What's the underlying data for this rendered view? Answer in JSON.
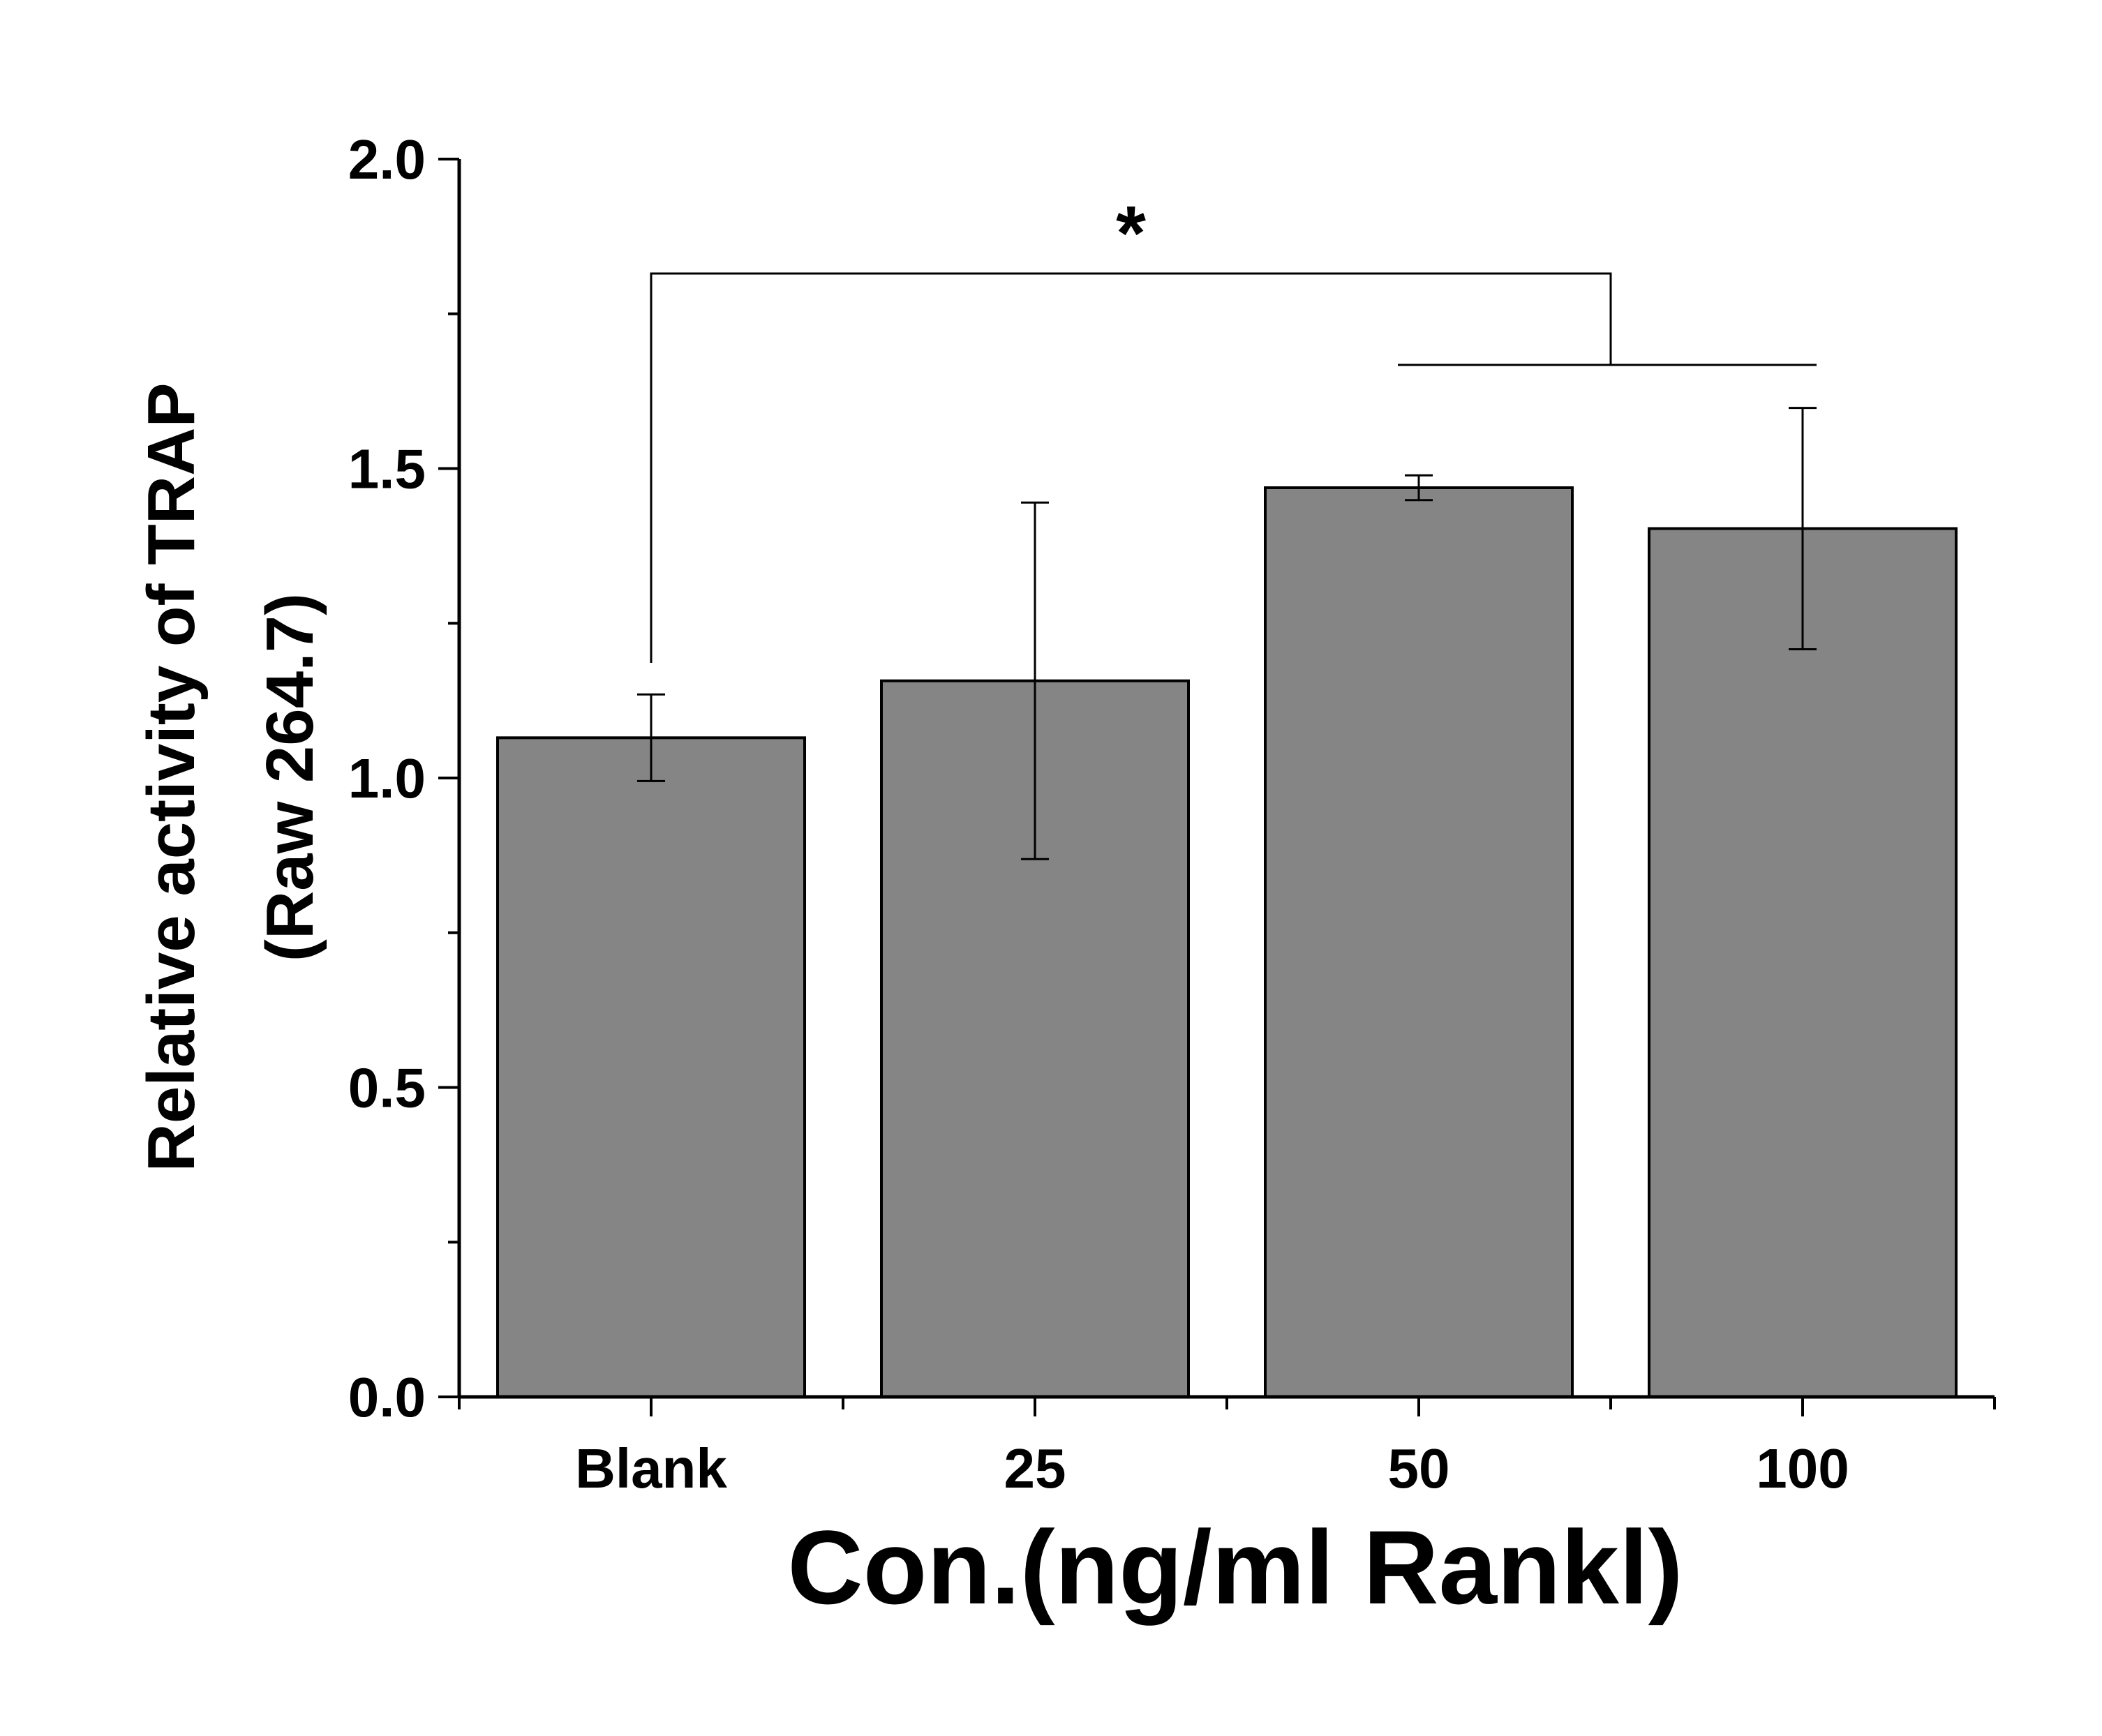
{
  "chart_data": {
    "type": "bar",
    "categories": [
      "Blank",
      "25",
      "50",
      "100"
    ],
    "values": [
      1.065,
      1.157,
      1.469,
      1.403
    ],
    "errors": [
      0.07,
      0.288,
      0.02,
      0.195
    ],
    "ylim": [
      0,
      2.0
    ],
    "yticks": [
      0.0,
      0.5,
      1.0,
      1.5,
      2.0
    ],
    "ytick_labels": [
      "0.0",
      "0.5",
      "1.0",
      "1.5",
      "2.0"
    ],
    "ylabel_lines": [
      "Relative activity of TRAP",
      "(Raw 264.7)"
    ],
    "xlabel": "Con.(ng/ml Rankl)",
    "bar_color": "#858585",
    "significance": {
      "label": "*",
      "from": "Blank",
      "to_group": [
        "50",
        "100"
      ]
    },
    "grid": false,
    "legend": "none"
  }
}
